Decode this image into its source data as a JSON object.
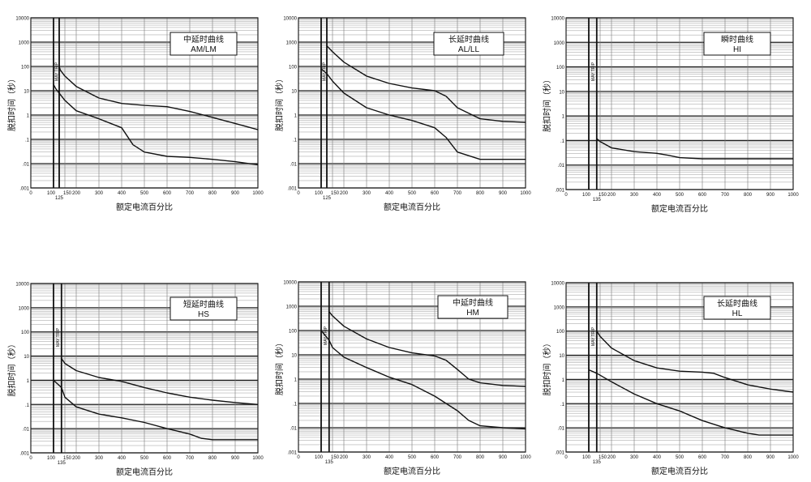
{
  "chart_data": [
    {
      "type": "line",
      "title": "中延时曲线",
      "subtitle": "AM/LM",
      "xlabel": "额定电流百分比",
      "ylabel": "脱扣时间（秒）",
      "xlim": [
        0,
        1000
      ],
      "y_scale": "log",
      "ylim": [
        0.001,
        10000
      ],
      "x_ticks": [
        "0",
        "100",
        "150",
        "200",
        "300",
        "400",
        "500",
        "600",
        "700",
        "800",
        "900",
        "1000"
      ],
      "x_extra_tick": "125",
      "y_ticks": [
        "10000",
        "1000",
        "100",
        "10",
        "1",
        ".1",
        ".01",
        ".001"
      ],
      "may_trip_label": "MAY TRIP",
      "vlines": [
        100,
        125
      ],
      "series": [
        {
          "x": [
            125,
            130,
            150,
            200,
            300,
            400,
            500,
            600,
            700,
            800,
            900,
            1000
          ],
          "y": [
            100,
            70,
            40,
            15,
            5,
            3,
            2.5,
            2.2,
            1.4,
            0.8,
            0.45,
            0.25
          ]
        },
        {
          "x": [
            100,
            110,
            125,
            150,
            200,
            300,
            400,
            450,
            500,
            600,
            700,
            800,
            900,
            1000
          ],
          "y": [
            18,
            12,
            8,
            4,
            1.5,
            0.7,
            0.3,
            0.06,
            0.03,
            0.02,
            0.018,
            0.015,
            0.012,
            0.009
          ]
        }
      ]
    },
    {
      "type": "line",
      "title": "长延时曲线",
      "subtitle": "AL/LL",
      "xlabel": "额定电流百分比",
      "ylabel": "脱扣时间（秒）",
      "xlim": [
        0,
        1000
      ],
      "y_scale": "log",
      "ylim": [
        0.001,
        10000
      ],
      "x_ticks": [
        "0",
        "100",
        "150",
        "200",
        "300",
        "400",
        "500",
        "600",
        "700",
        "800",
        "900",
        "1000"
      ],
      "x_extra_tick": "125",
      "y_ticks": [
        "10000",
        "1000",
        "100",
        "10",
        "1",
        ".1",
        ".01",
        ".001"
      ],
      "may_trip_label": "MAY TRIP",
      "vlines": [
        100,
        125
      ],
      "series": [
        {
          "x": [
            125,
            150,
            200,
            300,
            400,
            500,
            600,
            650,
            700,
            800,
            900,
            1000
          ],
          "y": [
            700,
            400,
            150,
            40,
            20,
            13,
            10,
            6,
            2,
            0.7,
            0.55,
            0.5
          ]
        },
        {
          "x": [
            100,
            125,
            150,
            200,
            300,
            400,
            500,
            600,
            650,
            700,
            800,
            900,
            1000
          ],
          "y": [
            80,
            50,
            25,
            8,
            2,
            1,
            0.6,
            0.3,
            0.12,
            0.03,
            0.015,
            0.015,
            0.015
          ]
        }
      ]
    },
    {
      "type": "line",
      "title": "瞬时曲线",
      "subtitle": "HI",
      "xlabel": "额定电流百分比",
      "ylabel": "脱扣时间（秒）",
      "xlim": [
        0,
        1000
      ],
      "y_scale": "log",
      "ylim": [
        0.001,
        10000
      ],
      "x_ticks": [
        "0",
        "100",
        "150",
        "200",
        "300",
        "400",
        "500",
        "600",
        "700",
        "800",
        "900",
        "1000"
      ],
      "x_extra_tick": "135",
      "y_ticks": [
        "10000",
        "1000",
        "100",
        "10",
        "1",
        ".1",
        ".01",
        ".001"
      ],
      "may_trip_label": "MAY TRIP",
      "vlines": [
        100,
        135
      ],
      "series": [
        {
          "x": [
            135,
            150,
            200,
            300,
            400,
            450,
            500,
            600,
            700,
            800,
            900,
            1000
          ],
          "y": [
            0.12,
            0.09,
            0.05,
            0.035,
            0.03,
            0.025,
            0.02,
            0.018,
            0.018,
            0.018,
            0.018,
            0.018
          ]
        }
      ]
    },
    {
      "type": "line",
      "title": "短延时曲线",
      "subtitle": "HS",
      "xlabel": "额定电流百分比",
      "ylabel": "脱扣时间（秒）",
      "xlim": [
        0,
        1000
      ],
      "y_scale": "log",
      "ylim": [
        0.001,
        10000
      ],
      "x_ticks": [
        "0",
        "100",
        "150",
        "200",
        "300",
        "400",
        "500",
        "600",
        "700",
        "800",
        "900",
        "1000"
      ],
      "x_extra_tick": "135",
      "y_ticks": [
        "10000",
        "1000",
        "100",
        "10",
        "1",
        ".1",
        ".01",
        ".001"
      ],
      "may_trip_label": "MAY TRIP",
      "vlines": [
        100,
        135
      ],
      "series": [
        {
          "x": [
            135,
            150,
            200,
            300,
            400,
            500,
            600,
            700,
            800,
            900,
            1000
          ],
          "y": [
            8,
            5,
            2.5,
            1.3,
            0.9,
            0.5,
            0.3,
            0.2,
            0.15,
            0.12,
            0.1
          ]
        },
        {
          "x": [
            100,
            135,
            150,
            200,
            300,
            400,
            500,
            600,
            700,
            750,
            800,
            900,
            1000
          ],
          "y": [
            1,
            0.5,
            0.2,
            0.08,
            0.04,
            0.028,
            0.018,
            0.01,
            0.006,
            0.004,
            0.0035,
            0.0035,
            0.0035
          ]
        }
      ]
    },
    {
      "type": "line",
      "title": "中延时曲线",
      "subtitle": "HM",
      "xlabel": "额定电流百分比",
      "ylabel": "脱扣时间（秒）",
      "xlim": [
        0,
        1000
      ],
      "y_scale": "log",
      "ylim": [
        0.001,
        10000
      ],
      "x_ticks": [
        "0",
        "100",
        "150",
        "200",
        "300",
        "400",
        "500",
        "600",
        "700",
        "800",
        "900",
        "1000"
      ],
      "x_extra_tick": "135",
      "y_ticks": [
        "10000",
        "1000",
        "100",
        "10",
        "1",
        ".1",
        ".01",
        ".001"
      ],
      "may_trip_label": "MAY TRIP",
      "vlines": [
        100,
        135
      ],
      "series": [
        {
          "x": [
            135,
            150,
            200,
            300,
            400,
            500,
            600,
            650,
            700,
            750,
            800,
            900,
            1000
          ],
          "y": [
            600,
            400,
            150,
            45,
            20,
            12,
            9,
            6,
            2.5,
            1,
            0.7,
            0.55,
            0.5
          ]
        },
        {
          "x": [
            100,
            135,
            150,
            200,
            300,
            400,
            500,
            600,
            700,
            750,
            800,
            900,
            1000
          ],
          "y": [
            100,
            40,
            20,
            8,
            3,
            1.2,
            0.6,
            0.2,
            0.05,
            0.02,
            0.012,
            0.01,
            0.009
          ]
        }
      ]
    },
    {
      "type": "line",
      "title": "长延时曲线",
      "subtitle": "HL",
      "xlabel": "额定电流百分比",
      "ylabel": "脱扣时间（秒）",
      "xlim": [
        0,
        1000
      ],
      "y_scale": "log",
      "ylim": [
        0.001,
        10000
      ],
      "x_ticks": [
        "0",
        "100",
        "150",
        "200",
        "300",
        "400",
        "500",
        "600",
        "700",
        "800",
        "900",
        "1000"
      ],
      "x_extra_tick": "135",
      "y_ticks": [
        "10000",
        "1000",
        "100",
        "10",
        "1",
        ".1",
        ".01",
        ".001"
      ],
      "may_trip_label": "MAY TRIP",
      "vlines": [
        100,
        135
      ],
      "series": [
        {
          "x": [
            135,
            150,
            200,
            300,
            400,
            500,
            600,
            650,
            700,
            800,
            900,
            1000
          ],
          "y": [
            100,
            60,
            20,
            6,
            3,
            2.2,
            2,
            1.8,
            1.2,
            0.6,
            0.4,
            0.3
          ]
        },
        {
          "x": [
            100,
            135,
            150,
            200,
            300,
            400,
            500,
            600,
            700,
            800,
            850,
            900,
            1000
          ],
          "y": [
            2.5,
            1.8,
            1.5,
            0.8,
            0.25,
            0.1,
            0.05,
            0.02,
            0.01,
            0.006,
            0.005,
            0.005,
            0.005
          ]
        }
      ]
    }
  ]
}
